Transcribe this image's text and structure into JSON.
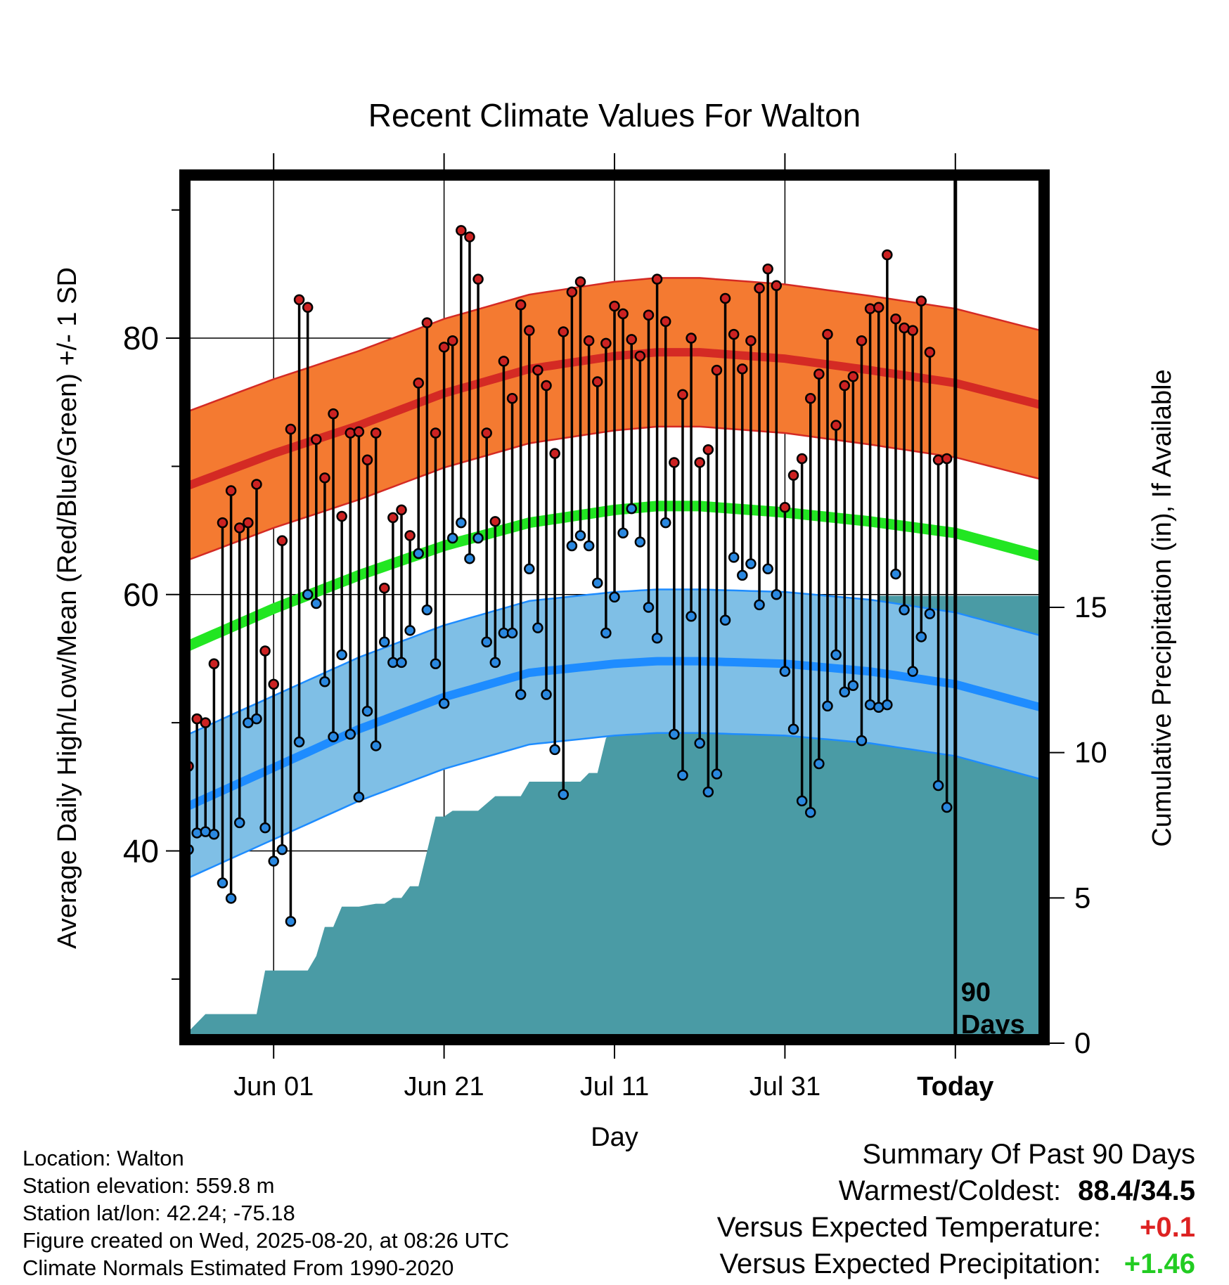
{
  "chart_data": {
    "type": "line",
    "title": "Recent Climate Values For Walton",
    "xlabel": "Day",
    "ylabel_left": "Average Daily High/Low/Mean (Red/Blue/Green) +/- 1 SD",
    "ylabel_right": "Cumulative Precipitation (in), If Available",
    "x_ticks": [
      "Jun 01",
      "Jun 21",
      "Jul 11",
      "Jul 31",
      "Today"
    ],
    "x_tick_days": [
      10,
      30,
      50,
      70,
      90
    ],
    "xlim_days": [
      0,
      100
    ],
    "ylim_left": [
      25,
      93
    ],
    "yticks_left": [
      40,
      60,
      80
    ],
    "ylim_right": [
      0,
      30
    ],
    "yticks_right": [
      0,
      5,
      10,
      15
    ],
    "today_marker_label": "90 Days",
    "grid": true,
    "series": [
      {
        "name": "Normal High",
        "color": "#d42a24",
        "band_color": "#f47a31",
        "sd": 5.8,
        "day": [
          0,
          10,
          20,
          30,
          40,
          50,
          55,
          60,
          70,
          80,
          90,
          100
        ],
        "values": [
          68.5,
          71.0,
          73.2,
          75.7,
          77.6,
          78.6,
          78.9,
          78.9,
          78.4,
          77.5,
          76.5,
          74.8
        ]
      },
      {
        "name": "Normal Mean",
        "color": "#22e622",
        "day": [
          0,
          10,
          20,
          30,
          40,
          50,
          55,
          60,
          70,
          80,
          90,
          100
        ],
        "values": [
          56.0,
          58.9,
          61.5,
          63.8,
          65.6,
          66.6,
          66.9,
          66.9,
          66.4,
          65.7,
          64.8,
          63.0
        ]
      },
      {
        "name": "Normal Low",
        "color": "#1e8cff",
        "band_color": "#7fbfe6",
        "sd": 5.6,
        "day": [
          0,
          10,
          20,
          30,
          40,
          50,
          55,
          60,
          70,
          80,
          90,
          100
        ],
        "values": [
          43.5,
          46.5,
          49.5,
          52.0,
          53.9,
          54.6,
          54.8,
          54.8,
          54.6,
          54.0,
          53.0,
          51.2
        ]
      },
      {
        "name": "Daily High",
        "color": "#cc2222",
        "day_start": 0,
        "values": [
          46.6,
          50.3,
          50.0,
          54.6,
          65.6,
          68.1,
          65.2,
          65.6,
          68.6,
          55.6,
          53.0,
          64.2,
          72.9,
          83.0,
          82.4,
          72.1,
          69.1,
          74.1,
          66.1,
          72.6,
          72.7,
          70.5,
          72.6,
          60.5,
          66.0,
          66.6,
          64.6,
          76.5,
          81.2,
          72.6,
          79.3,
          79.8,
          88.4,
          87.9,
          84.6,
          72.6,
          65.7,
          78.2,
          75.3,
          82.6,
          80.6,
          77.5,
          76.3,
          71.0,
          80.5,
          83.6,
          84.4,
          79.8,
          76.6,
          79.6,
          82.5,
          81.9,
          79.9,
          78.6,
          81.8,
          84.6,
          81.3,
          70.3,
          75.6,
          80.0,
          70.3,
          71.3,
          77.5,
          83.1,
          80.3,
          77.6,
          79.8,
          83.9,
          85.4,
          84.1,
          66.8,
          69.3,
          70.6,
          75.3,
          77.2,
          80.3,
          73.2,
          76.3,
          77.0,
          79.8,
          82.3,
          82.4,
          86.5,
          81.5,
          80.8,
          80.6,
          82.9,
          78.9,
          70.5,
          70.6
        ]
      },
      {
        "name": "Daily Low",
        "color": "#2a88e0",
        "day_start": 0,
        "values": [
          40.1,
          41.4,
          41.5,
          41.3,
          37.5,
          36.3,
          42.2,
          50.0,
          50.3,
          41.8,
          39.2,
          40.1,
          34.5,
          48.5,
          60.0,
          59.3,
          53.2,
          48.9,
          55.3,
          49.1,
          44.2,
          50.9,
          48.2,
          56.3,
          54.7,
          54.7,
          57.2,
          63.2,
          58.8,
          54.6,
          51.5,
          64.4,
          65.6,
          62.8,
          64.4,
          56.3,
          54.7,
          57.0,
          57.0,
          52.2,
          62.0,
          57.4,
          52.2,
          47.9,
          44.4,
          63.8,
          64.6,
          63.8,
          60.9,
          57.0,
          59.8,
          64.8,
          66.7,
          64.1,
          59.0,
          56.6,
          65.6,
          49.1,
          45.9,
          58.3,
          48.4,
          44.6,
          46.0,
          58.0,
          62.9,
          61.5,
          62.4,
          59.2,
          62.0,
          60.0,
          54.0,
          49.5,
          43.9,
          43.0,
          46.8,
          51.3,
          55.3,
          52.4,
          52.9,
          48.6,
          51.4,
          51.2,
          51.4,
          61.6,
          58.8,
          54.0,
          56.7,
          58.5,
          45.1,
          43.4
        ]
      },
      {
        "name": "Cumulative Precipitation",
        "color": "#4a9ba5",
        "day": [
          0,
          2,
          8,
          9,
          10,
          14,
          15,
          16,
          17,
          18,
          19,
          20,
          22,
          23,
          24,
          25,
          26,
          27,
          29,
          30,
          31,
          34,
          36,
          39,
          40,
          41,
          46,
          47,
          48,
          49,
          50,
          51,
          53,
          54,
          56,
          61,
          62,
          64,
          67,
          68,
          70,
          71,
          76,
          77,
          80,
          81,
          83,
          100
        ],
        "values": [
          0.4,
          1.0,
          1.0,
          2.5,
          2.5,
          2.5,
          3.0,
          4.0,
          4.0,
          4.7,
          4.7,
          4.7,
          4.8,
          4.8,
          5.0,
          5.0,
          5.4,
          5.4,
          7.8,
          7.8,
          8.0,
          8.0,
          8.5,
          8.5,
          9.0,
          9.0,
          9.0,
          9.3,
          9.3,
          10.5,
          10.8,
          11.6,
          12.0,
          12.0,
          12.2,
          12.2,
          12.5,
          12.5,
          12.8,
          12.8,
          13.4,
          13.4,
          13.8,
          13.8,
          13.8,
          15.4,
          15.4,
          15.4
        ]
      }
    ]
  },
  "info": {
    "location": "Location: Walton",
    "elevation": "Station elevation: 559.8 m",
    "latlon": "Station lat/lon: 42.24; -75.18",
    "created": "Figure created on Wed, 2025-08-20, at 08:26 UTC",
    "normals": "Climate Normals Estimated From 1990-2020"
  },
  "summary": {
    "title": "Summary Of Past 90 Days",
    "warmest_label": "Warmest/Coldest:",
    "warmest_value": "88.4/34.5",
    "temp_label": "Versus Expected Temperature:",
    "temp_value": "+0.1",
    "temp_color": "#dd2222",
    "precip_label": "Versus Expected Precipitation:",
    "precip_value": "+1.46",
    "precip_color": "#22cc22"
  }
}
